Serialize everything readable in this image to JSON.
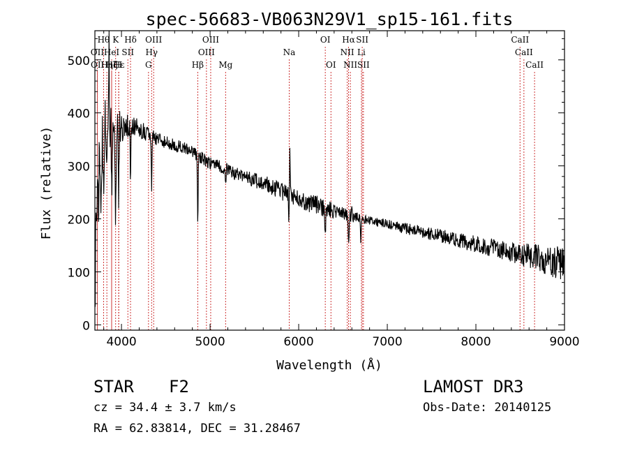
{
  "chart_data": {
    "type": "line",
    "title": "spec-56683-VB063N29V1_sp15-161.fits",
    "xlabel": "Wavelength (Å)",
    "ylabel": "Flux (relative)",
    "xlim": [
      3700,
      9000
    ],
    "ylim": [
      -10,
      555
    ],
    "xticks": [
      4000,
      5000,
      6000,
      7000,
      8000,
      9000
    ],
    "yticks": [
      0,
      100,
      200,
      300,
      400,
      500
    ],
    "line_color": "#000000",
    "marker_color": "#c81e1e",
    "continuum": [
      [
        3700,
        60
      ],
      [
        3730,
        280
      ],
      [
        3760,
        330
      ],
      [
        3800,
        370
      ],
      [
        3850,
        380
      ],
      [
        3900,
        370
      ],
      [
        4000,
        375
      ],
      [
        4100,
        375
      ],
      [
        4200,
        370
      ],
      [
        4300,
        360
      ],
      [
        4400,
        350
      ],
      [
        4500,
        345
      ],
      [
        4600,
        340
      ],
      [
        4700,
        333
      ],
      [
        4800,
        325
      ],
      [
        4900,
        315
      ],
      [
        5000,
        305
      ],
      [
        5200,
        292
      ],
      [
        5400,
        278
      ],
      [
        5600,
        268
      ],
      [
        5800,
        252
      ],
      [
        6000,
        238
      ],
      [
        6200,
        225
      ],
      [
        6400,
        215
      ],
      [
        6600,
        205
      ],
      [
        6800,
        197
      ],
      [
        7000,
        190
      ],
      [
        7200,
        182
      ],
      [
        7400,
        175
      ],
      [
        7600,
        168
      ],
      [
        7800,
        160
      ],
      [
        8000,
        152
      ],
      [
        8200,
        145
      ],
      [
        8400,
        138
      ],
      [
        8600,
        130
      ],
      [
        8800,
        123
      ],
      [
        9000,
        115
      ]
    ],
    "absorption_dips": [
      [
        3740,
        80
      ],
      [
        3770,
        120
      ],
      [
        3798,
        100
      ],
      [
        3835,
        110
      ],
      [
        3889,
        110
      ],
      [
        3934,
        170
      ],
      [
        3968,
        150
      ],
      [
        4102,
        90
      ],
      [
        4340,
        100
      ],
      [
        4861,
        120
      ],
      [
        5175,
        30
      ],
      [
        5890,
        40
      ],
      [
        6300,
        60
      ],
      [
        6563,
        60
      ],
      [
        6700,
        40
      ]
    ],
    "spikes": [
      [
        3860,
        140
      ],
      [
        5900,
        90
      ],
      [
        6600,
        25
      ]
    ],
    "noise": [
      [
        3700,
        70
      ],
      [
        3900,
        45
      ],
      [
        4100,
        20
      ],
      [
        4400,
        12
      ],
      [
        5000,
        12
      ],
      [
        5800,
        16
      ],
      [
        6200,
        18
      ],
      [
        6800,
        8
      ],
      [
        7500,
        12
      ],
      [
        8300,
        18
      ],
      [
        8700,
        25
      ],
      [
        9000,
        35
      ]
    ],
    "lines": [
      {
        "label": "Hθ",
        "wave": 3798,
        "row": 0
      },
      {
        "label": "OII",
        "wave": 3727,
        "row": 1
      },
      {
        "label": "OII",
        "wave": 3729,
        "row": 2
      },
      {
        "label": "Hη",
        "wave": 3835,
        "row": 2
      },
      {
        "label": "K",
        "wave": 3934,
        "row": 0
      },
      {
        "label": "H",
        "wave": 3968,
        "row": 2
      },
      {
        "label": "Hζ",
        "wave": 3889,
        "row": 2
      },
      {
        "label": "HeI",
        "wave": 3889,
        "row": 1
      },
      {
        "label": "Hε",
        "wave": 3970,
        "row": 2
      },
      {
        "label": "SII",
        "wave": 4072,
        "row": 1
      },
      {
        "label": "Hδ",
        "wave": 4102,
        "row": 0
      },
      {
        "label": "OIII",
        "wave": 4363,
        "row": 0
      },
      {
        "label": "Hγ",
        "wave": 4340,
        "row": 1
      },
      {
        "label": "G",
        "wave": 4305,
        "row": 2
      },
      {
        "label": "Hβ",
        "wave": 4861,
        "row": 2
      },
      {
        "label": "OIII",
        "wave": 4959,
        "row": 1
      },
      {
        "label": "OIII",
        "wave": 5007,
        "row": 0
      },
      {
        "label": "Mg",
        "wave": 5175,
        "row": 2
      },
      {
        "label": "Na",
        "wave": 5893,
        "row": 1
      },
      {
        "label": "OI",
        "wave": 6300,
        "row": 0
      },
      {
        "label": "OI",
        "wave": 6364,
        "row": 2
      },
      {
        "label": "NII",
        "wave": 6548,
        "row": 1
      },
      {
        "label": "Hα",
        "wave": 6563,
        "row": 0
      },
      {
        "label": "NII",
        "wave": 6583,
        "row": 2
      },
      {
        "label": "Li",
        "wave": 6708,
        "row": 1
      },
      {
        "label": "SII",
        "wave": 6717,
        "row": 0
      },
      {
        "label": "SII",
        "wave": 6731,
        "row": 2
      },
      {
        "label": "CaII",
        "wave": 8498,
        "row": 0
      },
      {
        "label": "CaII",
        "wave": 8542,
        "row": 1
      },
      {
        "label": "CaII",
        "wave": 8662,
        "row": 2
      }
    ]
  },
  "info": {
    "object_class": "STAR",
    "subclass": "F2",
    "redshift": "cz = 34.4 ± 3.7 km/s",
    "coordinates": "RA =  62.83814, DEC =  31.28467",
    "survey": "LAMOST DR3",
    "obs_date": "Obs-Date: 20140125"
  }
}
